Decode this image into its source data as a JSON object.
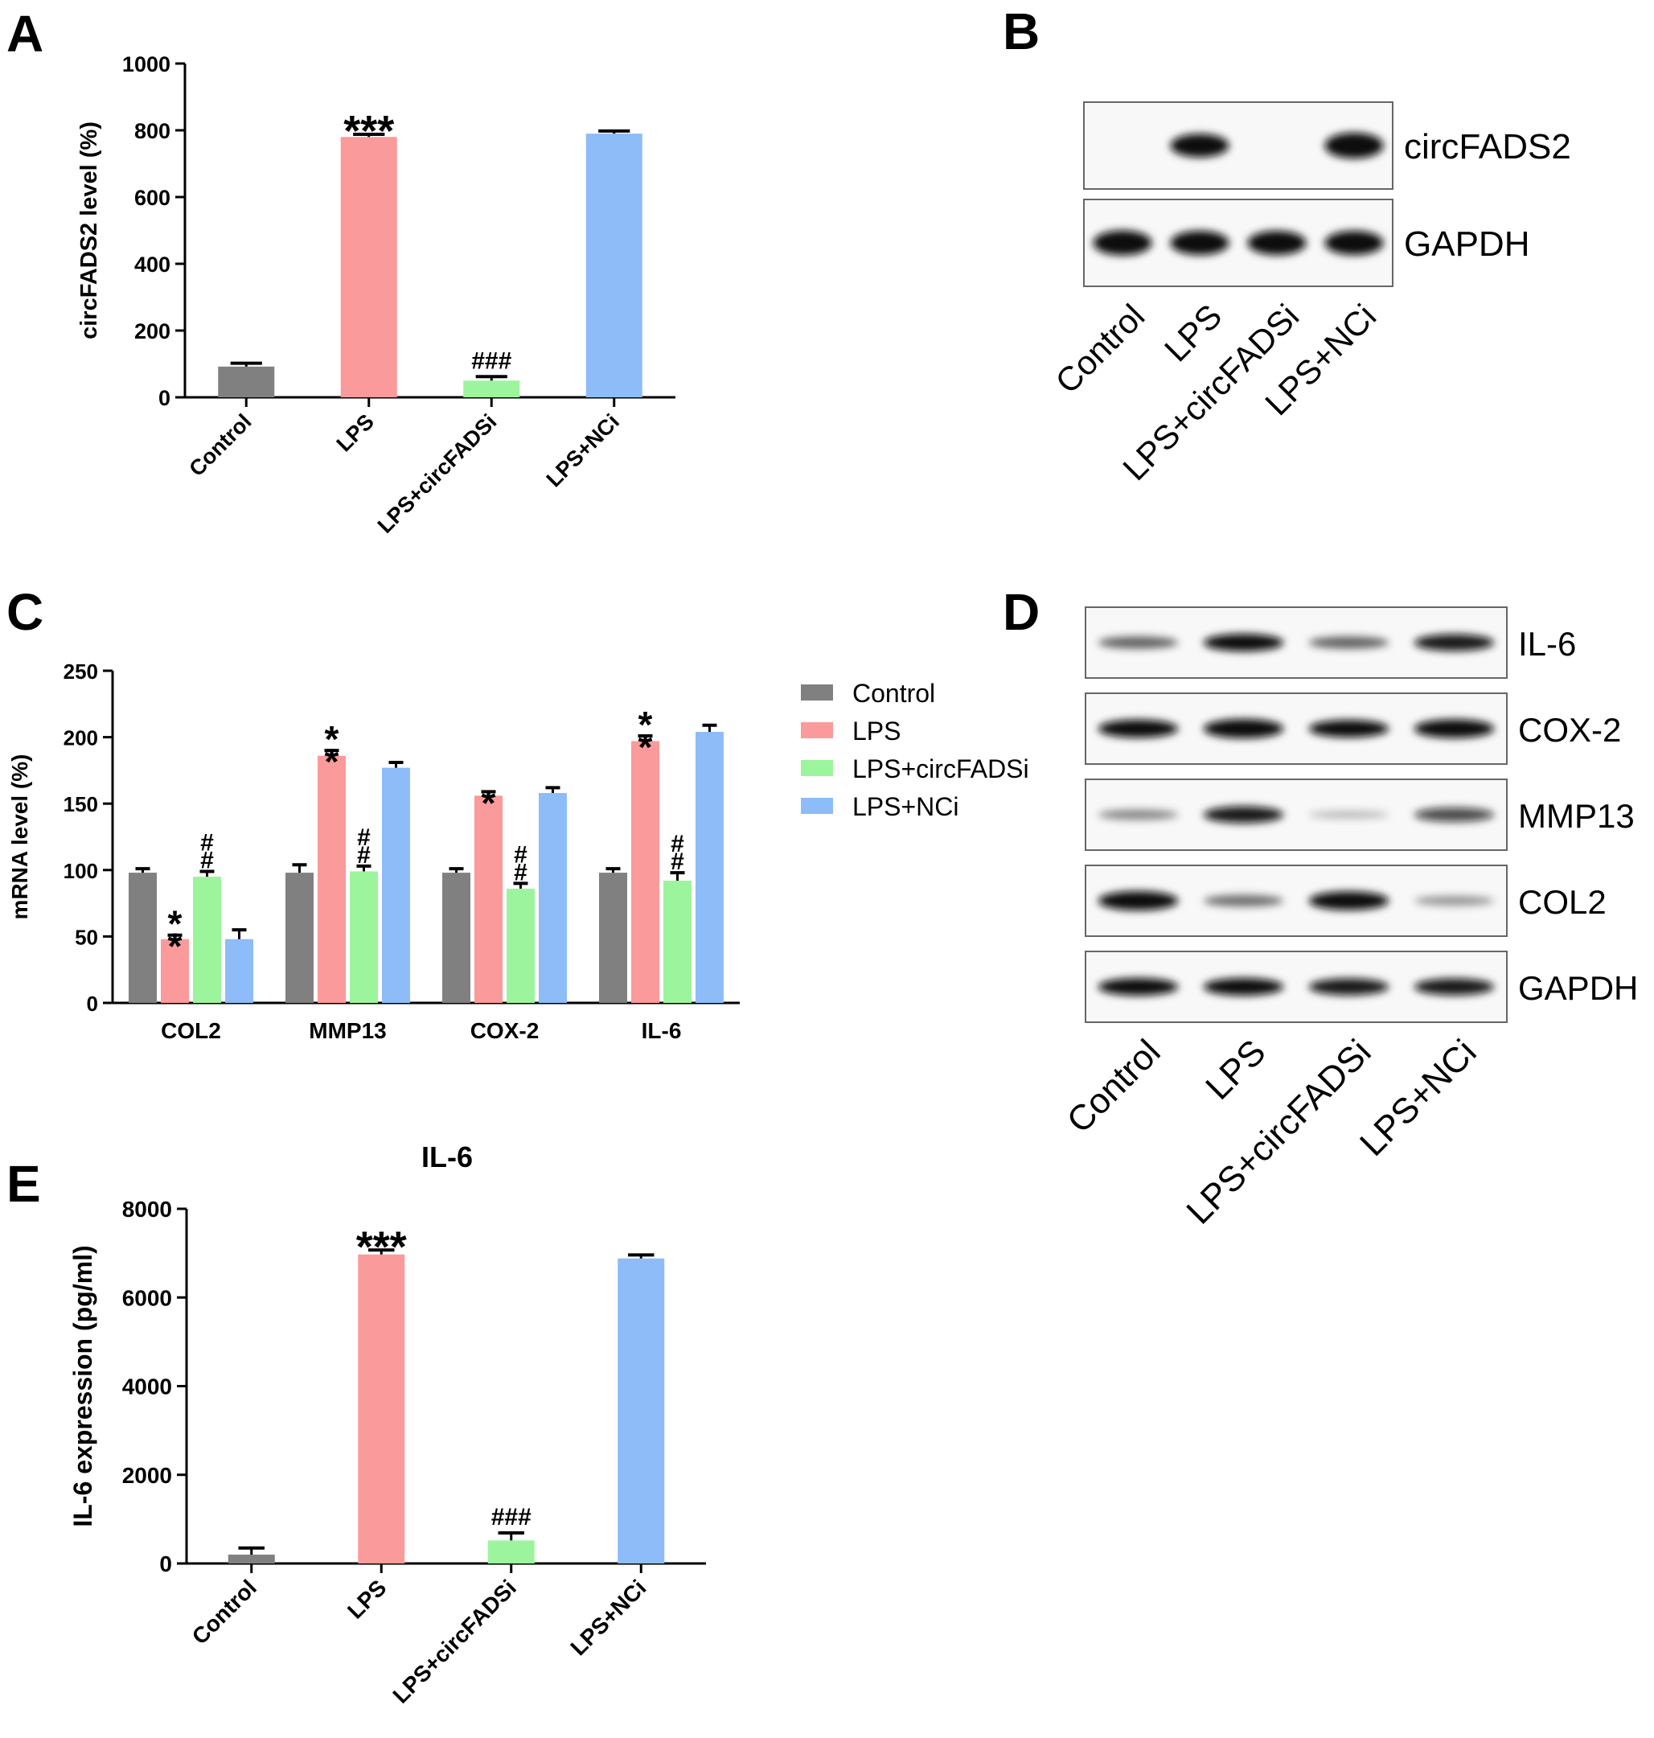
{
  "figure": {
    "title": "",
    "background": "#ffffff"
  },
  "colors": {
    "Control": "#808080",
    "LPS": "#FA9A9A",
    "LPS+circFADSi": "#9CF59C",
    "LPS+NCi": "#8DBCF8",
    "band": "#0a0a0a",
    "membrane": "#f8f8f8"
  },
  "panels": {
    "A": {
      "letter": "A"
    },
    "B": {
      "letter": "B",
      "rows": [
        {
          "label": "circFADS2",
          "intensities": [
            0,
            0.85,
            0,
            1.0
          ]
        },
        {
          "label": "GAPDH",
          "intensities": [
            0.95,
            0.9,
            0.9,
            0.9
          ]
        }
      ],
      "lanes": [
        "Control",
        "LPS",
        "LPS+circFADSi",
        "LPS+NCi"
      ]
    },
    "C": {
      "letter": "C"
    },
    "D": {
      "letter": "D",
      "rows": [
        {
          "label": "IL-6",
          "intensities": [
            0.45,
            0.85,
            0.45,
            0.8
          ]
        },
        {
          "label": "COX-2",
          "intensities": [
            0.9,
            1.0,
            0.85,
            0.95
          ]
        },
        {
          "label": "MMP13",
          "intensities": [
            0.3,
            0.8,
            0.1,
            0.6
          ]
        },
        {
          "label": "COL2",
          "intensities": [
            1.0,
            0.4,
            0.95,
            0.25
          ]
        },
        {
          "label": "GAPDH",
          "intensities": [
            0.85,
            0.85,
            0.8,
            0.8
          ]
        }
      ],
      "lanes": [
        "Control",
        "LPS",
        "LPS+circFADSi",
        "LPS+NCi"
      ]
    },
    "E": {
      "letter": "E"
    }
  },
  "chart_data": [
    {
      "panel": "A",
      "type": "bar",
      "title": "",
      "xlabel": "",
      "ylabel": "circFADS2 level (%)",
      "categories": [
        "Control",
        "LPS",
        "LPS+circFADSi",
        "LPS+NCi"
      ],
      "values": [
        92,
        780,
        50,
        790
      ],
      "errors": [
        10,
        8,
        12,
        8
      ],
      "annotations": [
        "",
        "***",
        "###",
        ""
      ],
      "ylim": [
        0,
        1000
      ],
      "yticks": [
        "0",
        "200",
        "400",
        "600",
        "800",
        "1000"
      ],
      "grid": false,
      "legend": "none"
    },
    {
      "panel": "C",
      "type": "bar",
      "title": "",
      "xlabel": "",
      "ylabel": "mRNA level (%)",
      "categories": [
        "COL2",
        "MMP13",
        "COX-2",
        "IL-6"
      ],
      "series": [
        {
          "name": "Control",
          "values": [
            98,
            98,
            98,
            98
          ],
          "errors": [
            3,
            6,
            3,
            3
          ],
          "annotations": [
            "",
            "",
            "",
            ""
          ]
        },
        {
          "name": "LPS",
          "values": [
            48,
            186,
            156,
            197
          ],
          "errors": [
            3,
            4,
            3,
            4
          ],
          "annotations": [
            "**",
            "**",
            "*",
            "**"
          ]
        },
        {
          "name": "LPS+circFADSi",
          "values": [
            95,
            99,
            86,
            92
          ],
          "errors": [
            4,
            4,
            4,
            6
          ],
          "annotations": [
            "##",
            "##",
            "##",
            "##"
          ]
        },
        {
          "name": "LPS+NCi",
          "values": [
            48,
            177,
            158,
            204
          ],
          "errors": [
            7,
            4,
            4,
            5
          ],
          "annotations": [
            "",
            "",
            "",
            ""
          ]
        }
      ],
      "ylim": [
        0,
        250
      ],
      "yticks": [
        "0",
        "50",
        "100",
        "150",
        "200",
        "250"
      ],
      "grid": false,
      "legend": "right"
    },
    {
      "panel": "E",
      "type": "bar",
      "title": "IL-6",
      "xlabel": "",
      "ylabel": "IL-6 expression (pg/ml)",
      "categories": [
        "Control",
        "LPS",
        "LPS+circFADSi",
        "LPS+NCi"
      ],
      "values": [
        200,
        6970,
        520,
        6880
      ],
      "errors": [
        150,
        100,
        170,
        80
      ],
      "annotations": [
        "",
        "***",
        "###",
        ""
      ],
      "ylim": [
        0,
        8000
      ],
      "yticks": [
        "0",
        "2000",
        "4000",
        "6000",
        "8000"
      ],
      "grid": false,
      "legend": "none"
    }
  ]
}
